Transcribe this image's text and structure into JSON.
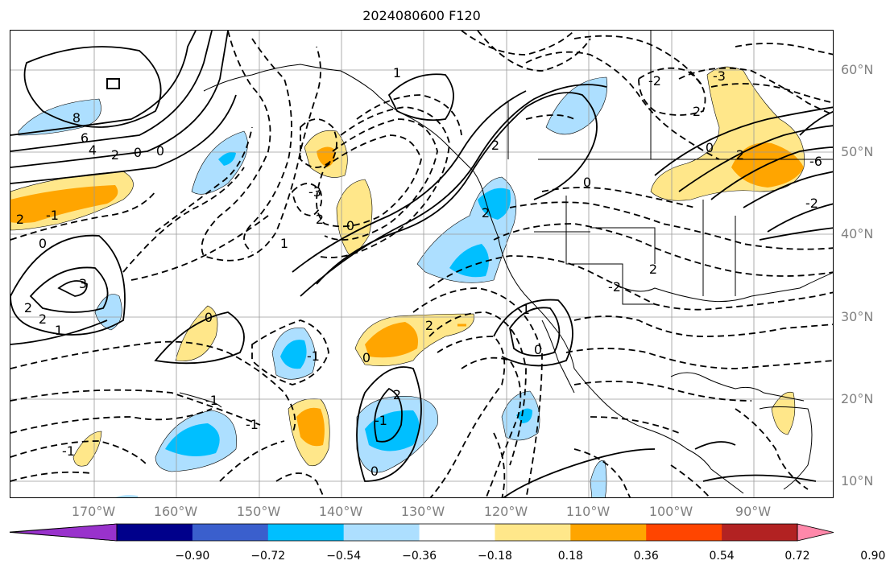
{
  "title": "2024080600 F120",
  "lat_labels": [
    "60°N",
    "50°N",
    "40°N",
    "30°N",
    "20°N",
    "10°N"
  ],
  "lon_labels": [
    "170°W",
    "160°W",
    "150°W",
    "140°W",
    "130°W",
    "120°W",
    "110°W",
    "100°W",
    "90°W"
  ],
  "colorbar": {
    "ticks": [
      "−0.90",
      "−0.72",
      "−0.54",
      "−0.36",
      "−0.18",
      "0.18",
      "0.36",
      "0.54",
      "0.72",
      "0.90"
    ],
    "colors": [
      "#9932CC",
      "#00008B",
      "#3A5FCD",
      "#00BFFF",
      "#ADDFFF",
      "#FFFFFF",
      "#FFE78A",
      "#FFA500",
      "#FF4500",
      "#B22222",
      "#FF88AA"
    ]
  },
  "contour_labels": {
    "l1": "8",
    "l2": "6",
    "l3": "4",
    "l4": "2",
    "l5": "0",
    "l6": "0",
    "l7": "-1",
    "l8": "2",
    "l9": "0",
    "l10": "3",
    "l11": "2",
    "l12": "2",
    "l13": "1",
    "l14": "1",
    "l15": "2",
    "l16": "0",
    "l17": "-3",
    "l18": "0",
    "l19": "-1",
    "l20": "2",
    "l21": "-1",
    "l22": "0",
    "l23": "2",
    "l24": "-1",
    "l25": "-1",
    "l26": "0",
    "l27": "2",
    "l28": "0",
    "l29": "2",
    "l30": "-2",
    "l31": "2",
    "l32": "0",
    "l33": "2",
    "l34": "-1",
    "l35": "-6",
    "l36": "-3",
    "l37": "-2",
    "l38": "0",
    "l39": "2",
    "l40": "1",
    "l41": "-2",
    "l42": "1"
  }
}
